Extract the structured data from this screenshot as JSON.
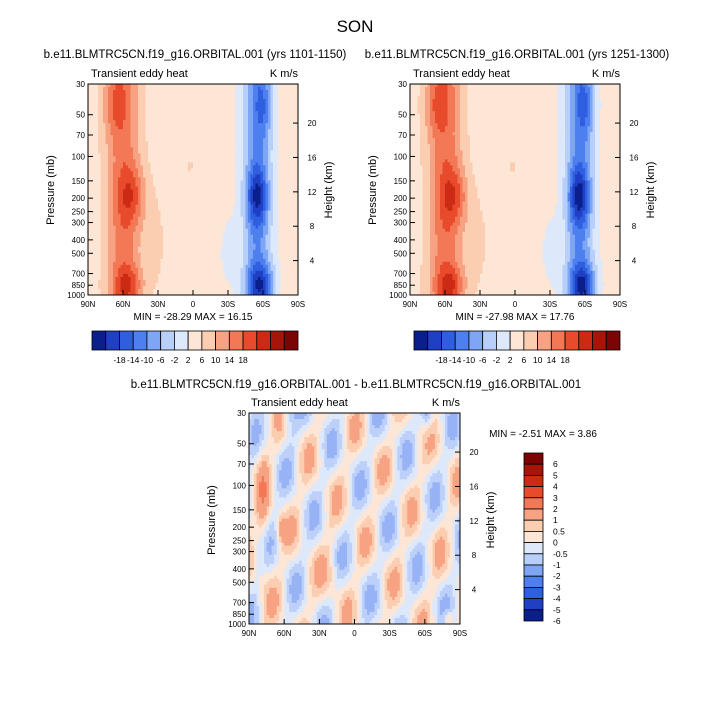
{
  "figure": {
    "title": "SON"
  },
  "colors": {
    "main_scale": [
      "#0a1e8c",
      "#1f3fc4",
      "#2f5fe0",
      "#4d80ee",
      "#7ea6f5",
      "#b7cff9",
      "#dde8fb",
      "#fde6d6",
      "#fbcdb1",
      "#f7a383",
      "#f37856",
      "#e84a2c",
      "#cc2a14",
      "#a7140a",
      "#7c0404"
    ],
    "diff_scale": [
      "#0a1e8c",
      "#1f3fc4",
      "#2f5fe0",
      "#4d80ee",
      "#7ea6f5",
      "#b7cff9",
      "#dde8fb",
      "#fde6d6",
      "#fbcdb1",
      "#f7a383",
      "#f37856",
      "#e84a2c",
      "#cc2a14",
      "#a7140a",
      "#7c0404"
    ]
  },
  "chart_data": [
    {
      "type": "heatmap",
      "title": "b.e11.BLMTRC5CN.f19_g16.ORBITAL.001 (yrs 1101-1150)",
      "left_label": "Transient eddy heat",
      "right_label": "K m/s",
      "ylabel": "Pressure (mb)",
      "ylabel_right": "Height (km)",
      "x_ticks": [
        "90N",
        "60N",
        "30N",
        "0",
        "30S",
        "60S",
        "90S"
      ],
      "x_values": [
        90,
        60,
        30,
        0,
        -30,
        -60,
        -90
      ],
      "y_ticks": [
        "30",
        "50",
        "70",
        "100",
        "150",
        "200",
        "250",
        "300",
        "400",
        "500",
        "700",
        "850",
        "1000"
      ],
      "y_values": [
        30,
        50,
        70,
        100,
        150,
        200,
        250,
        300,
        400,
        500,
        700,
        850,
        1000
      ],
      "height_ticks": [
        "4",
        "8",
        "12",
        "16",
        "20"
      ],
      "height_values": [
        4,
        8,
        12,
        16,
        20
      ],
      "ylim": [
        1000,
        30
      ],
      "xlim": [
        90,
        -90
      ],
      "stats": "MIN = -28.29   MAX =  16.15",
      "min": -28.29,
      "max": 16.15,
      "colorbar_labels": [
        "-18",
        "-14",
        "-10",
        "-6",
        "-2",
        "2",
        "6",
        "10",
        "14",
        "18"
      ]
    },
    {
      "type": "heatmap",
      "title": "b.e11.BLMTRC5CN.f19_g16.ORBITAL.001 (yrs 1251-1300)",
      "left_label": "Transient eddy heat",
      "right_label": "K m/s",
      "ylabel": "Pressure (mb)",
      "ylabel_right": "Height (km)",
      "x_ticks": [
        "90N",
        "60N",
        "30N",
        "0",
        "30S",
        "60S",
        "90S"
      ],
      "x_values": [
        90,
        60,
        30,
        0,
        -30,
        -60,
        -90
      ],
      "y_ticks": [
        "30",
        "50",
        "70",
        "100",
        "150",
        "200",
        "250",
        "300",
        "400",
        "500",
        "700",
        "850",
        "1000"
      ],
      "y_values": [
        30,
        50,
        70,
        100,
        150,
        200,
        250,
        300,
        400,
        500,
        700,
        850,
        1000
      ],
      "height_ticks": [
        "4",
        "8",
        "12",
        "16",
        "20"
      ],
      "height_values": [
        4,
        8,
        12,
        16,
        20
      ],
      "ylim": [
        1000,
        30
      ],
      "xlim": [
        90,
        -90
      ],
      "stats": "MIN = -27.98   MAX =  17.76",
      "min": -27.98,
      "max": 17.76,
      "colorbar_labels": [
        "-18",
        "-14",
        "-10",
        "-6",
        "-2",
        "2",
        "6",
        "10",
        "14",
        "18"
      ]
    },
    {
      "type": "heatmap",
      "title": "b.e11.BLMTRC5CN.f19_g16.ORBITAL.001 - b.e11.BLMTRC5CN.f19_g16.ORBITAL.001",
      "left_label": "Transient eddy heat",
      "right_label": "K m/s",
      "ylabel": "Pressure (mb)",
      "ylabel_right": "Height (km)",
      "x_ticks": [
        "90N",
        "60N",
        "30N",
        "0",
        "30S",
        "60S",
        "90S"
      ],
      "x_values": [
        90,
        60,
        30,
        0,
        -30,
        -60,
        -90
      ],
      "y_ticks": [
        "30",
        "50",
        "70",
        "100",
        "150",
        "200",
        "250",
        "300",
        "400",
        "500",
        "700",
        "850",
        "1000"
      ],
      "y_values": [
        30,
        50,
        70,
        100,
        150,
        200,
        250,
        300,
        400,
        500,
        700,
        850,
        1000
      ],
      "height_ticks": [
        "4",
        "8",
        "12",
        "16",
        "20"
      ],
      "height_values": [
        4,
        8,
        12,
        16,
        20
      ],
      "ylim": [
        1000,
        30
      ],
      "xlim": [
        90,
        -90
      ],
      "stats": "MIN =  -2.51   MAX =   3.86",
      "min": -2.51,
      "max": 3.86,
      "colorbar_labels": [
        "6",
        "5",
        "4",
        "3",
        "2",
        "1",
        "0.5",
        "0",
        "-0.5",
        "-1",
        "-2",
        "-3",
        "-4",
        "-5",
        "-6"
      ]
    }
  ]
}
